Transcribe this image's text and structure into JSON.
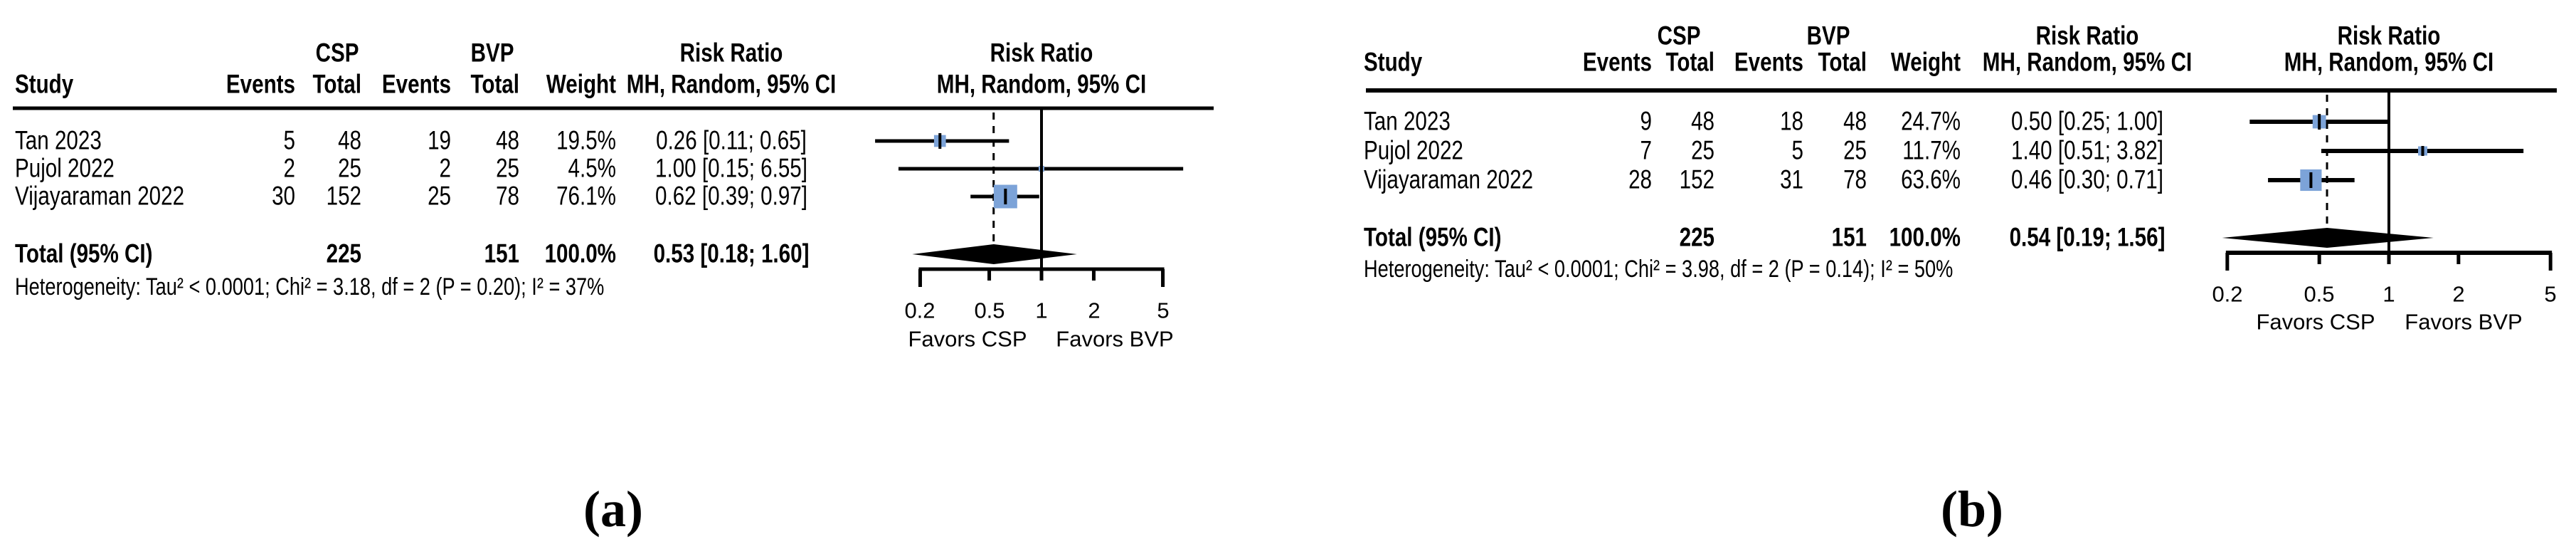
{
  "colors": {
    "square": "#7CA3D8",
    "diamond": "#000000",
    "line": "#000000",
    "text": "#000000"
  },
  "panels": [
    {
      "panel_label": "(a)",
      "headers": {
        "csp": "CSP",
        "bvp": "BVP",
        "risk_ratio_left": "Risk Ratio",
        "risk_ratio_right": "Risk Ratio",
        "study": "Study",
        "events_csp": "Events",
        "total_csp": "Total",
        "events_bvp": "Events",
        "total_bvp": "Total",
        "weight": "Weight",
        "mh_left": "MH, Random, 95% CI",
        "mh_right": "MH, Random, 95% CI"
      },
      "studies": [
        {
          "name": "Tan 2023",
          "events_csp": "5",
          "total_csp": "48",
          "events_bvp": "19",
          "total_bvp": "48",
          "weight": "19.5%",
          "rr_ci": "0.26 [0.11; 0.65]"
        },
        {
          "name": "Pujol 2022",
          "events_csp": "2",
          "total_csp": "25",
          "events_bvp": "2",
          "total_bvp": "25",
          "weight": "4.5%",
          "rr_ci": "1.00 [0.15; 6.55]"
        },
        {
          "name": "Vijayaraman 2022",
          "events_csp": "30",
          "total_csp": "152",
          "events_bvp": "25",
          "total_bvp": "78",
          "weight": "76.1%",
          "rr_ci": "0.62 [0.39; 0.97]"
        }
      ],
      "total_row": {
        "label": "Total (95% CI)",
        "total_csp": "225",
        "total_bvp": "151",
        "weight": "100.0%",
        "rr_ci": "0.53 [0.18; 1.60]"
      },
      "heterogeneity": "Heterogeneity: Tau² < 0.0001; Chi² = 3.18, df = 2 (P = 0.20); I² = 37%",
      "axis_ticks": [
        "0.2",
        "0.5",
        "1",
        "2",
        "5"
      ],
      "favors_left": "Favors CSP",
      "favors_right": "Favors BVP"
    },
    {
      "panel_label": "(b)",
      "headers": {
        "csp": "CSP",
        "bvp": "BVP",
        "risk_ratio_left": "Risk Ratio",
        "risk_ratio_right": "Risk Ratio",
        "study": "Study",
        "events_csp": "Events",
        "total_csp": "Total",
        "events_bvp": "Events",
        "total_bvp": "Total",
        "weight": "Weight",
        "mh_left": "MH, Random, 95% CI",
        "mh_right": "MH, Random, 95% CI"
      },
      "studies": [
        {
          "name": "Tan 2023",
          "events_csp": "9",
          "total_csp": "48",
          "events_bvp": "18",
          "total_bvp": "48",
          "weight": "24.7%",
          "rr_ci": "0.50 [0.25; 1.00]"
        },
        {
          "name": "Pujol 2022",
          "events_csp": "7",
          "total_csp": "25",
          "events_bvp": "5",
          "total_bvp": "25",
          "weight": "11.7%",
          "rr_ci": "1.40 [0.51; 3.82]"
        },
        {
          "name": "Vijayaraman 2022",
          "events_csp": "28",
          "total_csp": "152",
          "events_bvp": "31",
          "total_bvp": "78",
          "weight": "63.6%",
          "rr_ci": "0.46 [0.30; 0.71]"
        }
      ],
      "total_row": {
        "label": "Total (95% CI)",
        "total_csp": "225",
        "total_bvp": "151",
        "weight": "100.0%",
        "rr_ci": "0.54 [0.19; 1.56]"
      },
      "heterogeneity": "Heterogeneity: Tau² < 0.0001; Chi² = 3.98, df = 2 (P = 0.14); I² = 50%",
      "axis_ticks": [
        "0.2",
        "0.5",
        "1",
        "2",
        "5"
      ],
      "favors_left": "Favors CSP",
      "favors_right": "Favors BVP"
    }
  ],
  "chart_data": [
    {
      "type": "forest",
      "panel": "a",
      "title": "Risk Ratio, MH, Random, 95% CI",
      "x_scale": "log",
      "x_ticks": [
        0.2,
        0.5,
        1,
        2,
        5
      ],
      "reference_line": 1,
      "dashed_line_at": 0.53,
      "studies": [
        {
          "name": "Tan 2023",
          "rr": 0.26,
          "ci": [
            0.11,
            0.65
          ],
          "weight_pct": 19.5
        },
        {
          "name": "Pujol 2022",
          "rr": 1.0,
          "ci": [
            0.15,
            6.55
          ],
          "weight_pct": 4.5
        },
        {
          "name": "Vijayaraman 2022",
          "rr": 0.62,
          "ci": [
            0.39,
            0.97
          ],
          "weight_pct": 76.1
        }
      ],
      "pooled": {
        "rr": 0.53,
        "ci": [
          0.18,
          1.6
        ]
      },
      "heterogeneity": {
        "tau2": "< 0.0001",
        "chi2": 3.18,
        "df": 2,
        "p": 0.2,
        "i2": "37%"
      }
    },
    {
      "type": "forest",
      "panel": "b",
      "title": "Risk Ratio, MH, Random, 95% CI",
      "x_scale": "log",
      "x_ticks": [
        0.2,
        0.5,
        1,
        2,
        5
      ],
      "reference_line": 1,
      "dashed_line_at": 0.54,
      "studies": [
        {
          "name": "Tan 2023",
          "rr": 0.5,
          "ci": [
            0.25,
            1.0
          ],
          "weight_pct": 24.7
        },
        {
          "name": "Pujol 2022",
          "rr": 1.4,
          "ci": [
            0.51,
            3.82
          ],
          "weight_pct": 11.7
        },
        {
          "name": "Vijayaraman 2022",
          "rr": 0.46,
          "ci": [
            0.3,
            0.71
          ],
          "weight_pct": 63.6
        }
      ],
      "pooled": {
        "rr": 0.54,
        "ci": [
          0.19,
          1.56
        ]
      },
      "heterogeneity": {
        "tau2": "< 0.0001",
        "chi2": 3.98,
        "df": 2,
        "p": 0.14,
        "i2": "50%"
      }
    }
  ]
}
